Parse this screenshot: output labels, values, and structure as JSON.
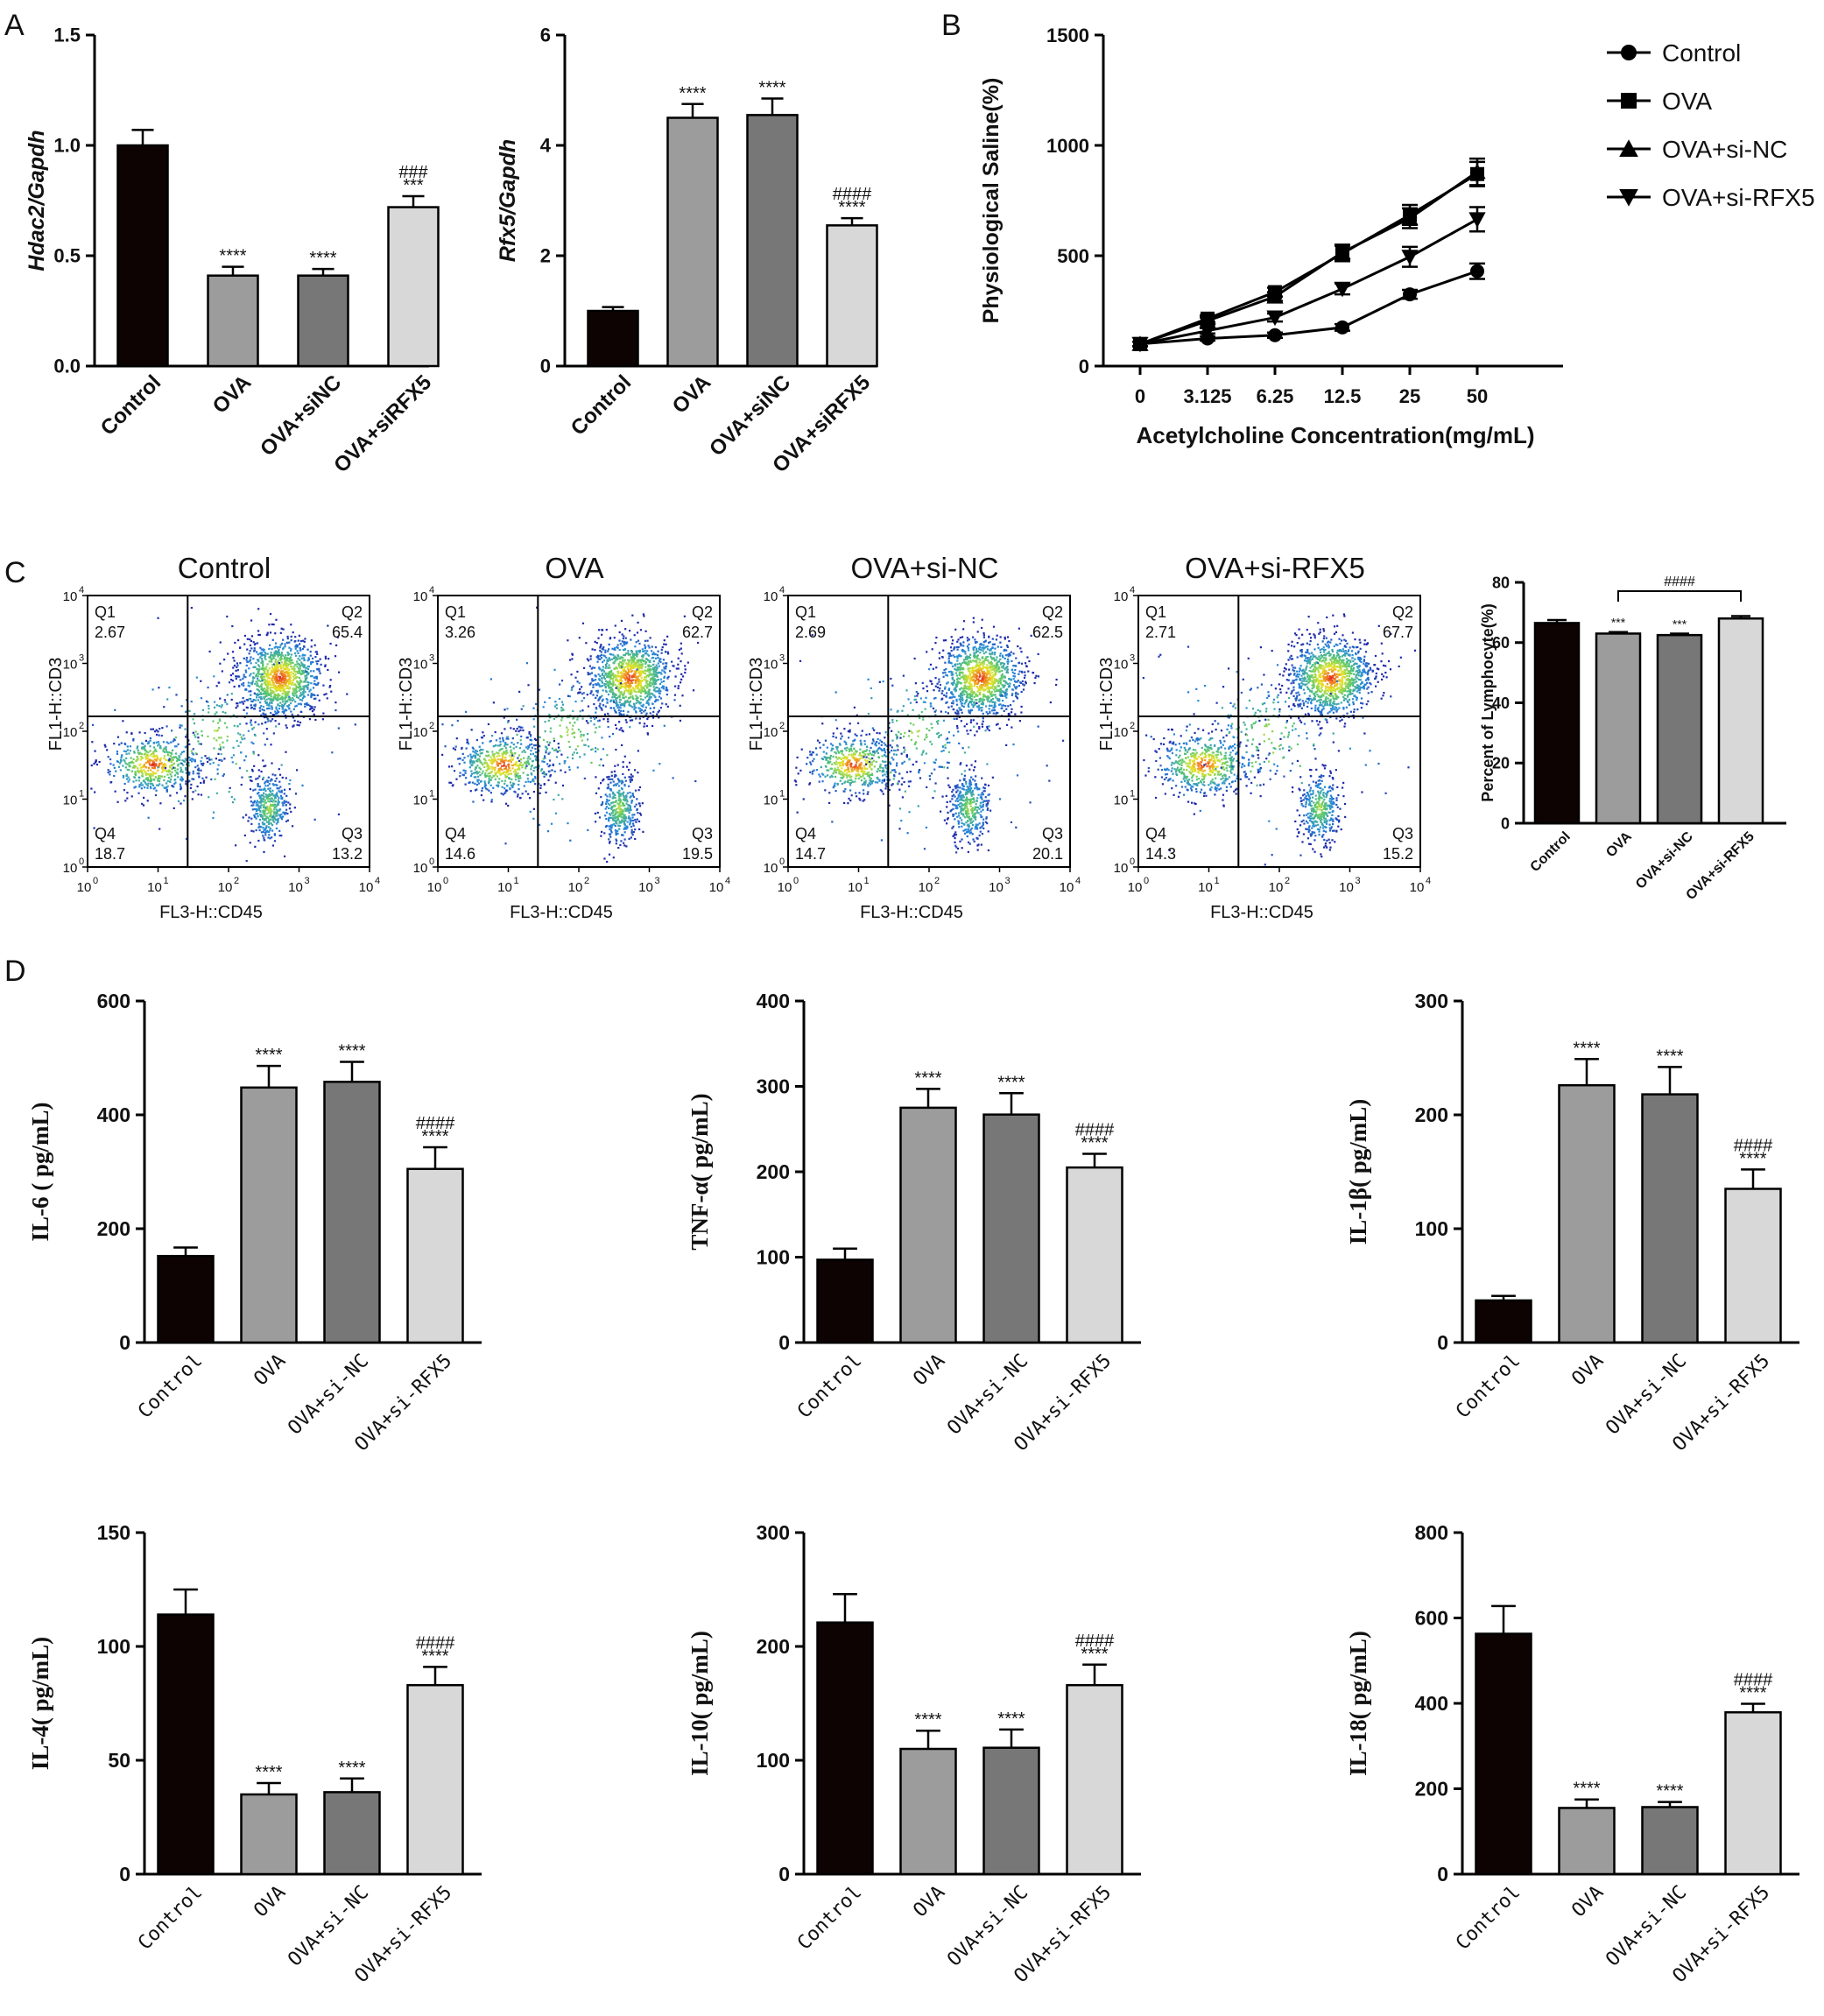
{
  "panel_letters": {
    "A": "A",
    "B": "B",
    "C": "C",
    "D": "D"
  },
  "colors": {
    "control": "#0d0303",
    "ova": "#9c9c9c",
    "ova_sinc": "#777777",
    "ova_sirfx5": "#d8d8d8"
  },
  "chart_data": [
    {
      "id": "hdac2",
      "type": "bar",
      "ylabel": "Hdac2/Gapdh",
      "ylim": [
        0,
        1.5
      ],
      "yticks": [
        "0.0",
        "0.5",
        "1.0",
        "1.5"
      ],
      "categories": [
        "Control",
        "OVA",
        "OVA+siNC",
        "OVA+siRFX5"
      ],
      "values": [
        1.0,
        0.41,
        0.41,
        0.72
      ],
      "errors": [
        0.07,
        0.04,
        0.03,
        0.05
      ],
      "annotations": [
        "",
        "****",
        "****",
        "***"
      ],
      "annotations2": [
        "",
        "",
        "",
        "###"
      ]
    },
    {
      "id": "rfx5",
      "type": "bar",
      "ylabel": "Rfx5/Gapdh",
      "ylim": [
        0,
        6
      ],
      "yticks": [
        "0",
        "2",
        "4",
        "6"
      ],
      "categories": [
        "Control",
        "OVA",
        "OVA+siNC",
        "OVA+siRFX5"
      ],
      "values": [
        1.0,
        4.5,
        4.55,
        2.55
      ],
      "errors": [
        0.07,
        0.25,
        0.3,
        0.13
      ],
      "annotations": [
        "",
        "****",
        "****",
        "****"
      ],
      "annotations2": [
        "",
        "",
        "",
        "####"
      ]
    },
    {
      "id": "saline",
      "type": "line",
      "ylabel": "Physiological Saline(%)",
      "xlabel": "Acetylcholine Concentration(mg/mL)",
      "categories": [
        "0",
        "3.125",
        "6.25",
        "12.5",
        "25",
        "50"
      ],
      "ylim": [
        0,
        1500
      ],
      "yticks": [
        "0",
        "500",
        "1000",
        "1500"
      ],
      "legend_position": "right",
      "series": [
        {
          "name": "Control",
          "marker": "circle",
          "values": [
            100,
            125,
            140,
            175,
            325,
            430
          ],
          "errors": [
            10,
            10,
            12,
            15,
            20,
            35
          ]
        },
        {
          "name": "OVA",
          "marker": "square",
          "values": [
            100,
            215,
            335,
            510,
            685,
            870
          ],
          "errors": [
            10,
            15,
            20,
            35,
            45,
            55
          ]
        },
        {
          "name": "OVA+si-NC",
          "marker": "triangle",
          "values": [
            100,
            205,
            315,
            515,
            670,
            880
          ],
          "errors": [
            10,
            15,
            20,
            35,
            45,
            60
          ]
        },
        {
          "name": "OVA+si-RFX5",
          "marker": "triangle-down",
          "values": [
            100,
            160,
            220,
            350,
            495,
            665
          ],
          "errors": [
            10,
            12,
            18,
            25,
            45,
            55
          ]
        }
      ]
    },
    {
      "id": "lymph",
      "type": "bar",
      "ylabel": "Percent of Lymphocyte(%)",
      "ylim": [
        0,
        80
      ],
      "yticks": [
        "0",
        "20",
        "40",
        "60",
        "80"
      ],
      "categories": [
        "Control",
        "OVA",
        "OVA+si-NC",
        "OVA+si-RFX5"
      ],
      "values": [
        66.5,
        63.0,
        62.5,
        68.0
      ],
      "errors": [
        1.0,
        0.5,
        0.5,
        0.8
      ],
      "annotations": [
        "",
        "***",
        "***",
        ""
      ],
      "bracket_label": "####"
    },
    {
      "id": "il6",
      "type": "bar",
      "ylabel": "IL-6 ( pg/mL)",
      "ylim": [
        0,
        600
      ],
      "yticks": [
        "0",
        "200",
        "400",
        "600"
      ],
      "categories": [
        "Control",
        "OVA",
        "OVA+si-NC",
        "OVA+si-RFX5"
      ],
      "values": [
        152,
        448,
        458,
        305
      ],
      "errors": [
        15,
        38,
        35,
        38
      ],
      "annotations": [
        "",
        "****",
        "****",
        "****"
      ],
      "annotations2": [
        "",
        "",
        "",
        "####"
      ]
    },
    {
      "id": "tnf",
      "type": "bar",
      "ylabel": "TNF-α( pg/mL)",
      "ylim": [
        0,
        400
      ],
      "yticks": [
        "0",
        "100",
        "200",
        "300",
        "400"
      ],
      "categories": [
        "Control",
        "OVA",
        "OVA+si-NC",
        "OVA+si-RFX5"
      ],
      "values": [
        97,
        275,
        267,
        205
      ],
      "errors": [
        13,
        22,
        25,
        16
      ],
      "annotations": [
        "",
        "****",
        "****",
        "****"
      ],
      "annotations2": [
        "",
        "",
        "",
        "####"
      ]
    },
    {
      "id": "il1b",
      "type": "bar",
      "ylabel": "IL-1β( pg/mL)",
      "ylim": [
        0,
        300
      ],
      "yticks": [
        "0",
        "100",
        "200",
        "300"
      ],
      "categories": [
        "Control",
        "OVA",
        "OVA+si-NC",
        "OVA+si-RFX5"
      ],
      "values": [
        37,
        226,
        218,
        135
      ],
      "errors": [
        4,
        23,
        24,
        17
      ],
      "annotations": [
        "",
        "****",
        "****",
        "****"
      ],
      "annotations2": [
        "",
        "",
        "",
        "####"
      ]
    },
    {
      "id": "il4",
      "type": "bar",
      "ylabel": "IL-4( pg/mL)",
      "ylim": [
        0,
        150
      ],
      "yticks": [
        "0",
        "50",
        "100",
        "150"
      ],
      "categories": [
        "Control",
        "OVA",
        "OVA+si-NC",
        "OVA+si-RFX5"
      ],
      "values": [
        114,
        35,
        36,
        83
      ],
      "errors": [
        11,
        5,
        6,
        8
      ],
      "annotations": [
        "",
        "****",
        "****",
        "****"
      ],
      "annotations2": [
        "",
        "",
        "",
        "####"
      ]
    },
    {
      "id": "il10",
      "type": "bar",
      "ylabel": "IL-10( pg/mL)",
      "ylim": [
        0,
        300
      ],
      "yticks": [
        "0",
        "100",
        "200",
        "300"
      ],
      "categories": [
        "Control",
        "OVA",
        "OVA+si-NC",
        "OVA+si-RFX5"
      ],
      "values": [
        221,
        110,
        111,
        166
      ],
      "errors": [
        25,
        16,
        16,
        18
      ],
      "annotations": [
        "",
        "****",
        "****",
        "****"
      ],
      "annotations2": [
        "",
        "",
        "",
        "####"
      ]
    },
    {
      "id": "il18",
      "type": "bar",
      "ylabel": "IL-18( pg/mL)",
      "ylim": [
        0,
        800
      ],
      "yticks": [
        "0",
        "200",
        "400",
        "600",
        "800"
      ],
      "categories": [
        "Control",
        "OVA",
        "OVA+si-NC",
        "OVA+si-RFX5"
      ],
      "values": [
        563,
        155,
        157,
        379
      ],
      "errors": [
        65,
        20,
        12,
        20
      ],
      "annotations": [
        "",
        "****",
        "****",
        "****"
      ],
      "annotations2": [
        "",
        "",
        "",
        "####"
      ]
    }
  ],
  "flow_panels": [
    {
      "title": "Control",
      "xlabel": "FL3-H::CD45",
      "ylabel": "FL1-H::CD3",
      "quadrants": {
        "q1": "Q1",
        "q1v": "2.67",
        "q2": "Q2",
        "q2v": "65.4",
        "q3": "Q3",
        "q3v": "13.2",
        "q4": "Q4",
        "q4v": "18.7"
      }
    },
    {
      "title": "OVA",
      "xlabel": "FL3-H::CD45",
      "ylabel": "FL1-H::CD3",
      "quadrants": {
        "q1": "Q1",
        "q1v": "3.26",
        "q2": "Q2",
        "q2v": "62.7",
        "q3": "Q3",
        "q3v": "19.5",
        "q4": "Q4",
        "q4v": "14.6"
      }
    },
    {
      "title": "OVA+si-NC",
      "xlabel": "FL3-H::CD45",
      "ylabel": "FL1-H::CD3",
      "quadrants": {
        "q1": "Q1",
        "q1v": "2.69",
        "q2": "Q2",
        "q2v": "62.5",
        "q3": "Q3",
        "q3v": "20.1",
        "q4": "Q4",
        "q4v": "14.7"
      }
    },
    {
      "title": "OVA+si-RFX5",
      "xlabel": "FL3-H::CD45",
      "ylabel": "FL1-H::CD3",
      "quadrants": {
        "q1": "Q1",
        "q1v": "2.71",
        "q2": "Q2",
        "q2v": "67.7",
        "q3": "Q3",
        "q3v": "15.2",
        "q4": "Q4",
        "q4v": "14.3"
      }
    }
  ],
  "flow_axis_ticks": [
    "0",
    "1",
    "2",
    "3",
    "4"
  ],
  "flow_axis_base": "10"
}
